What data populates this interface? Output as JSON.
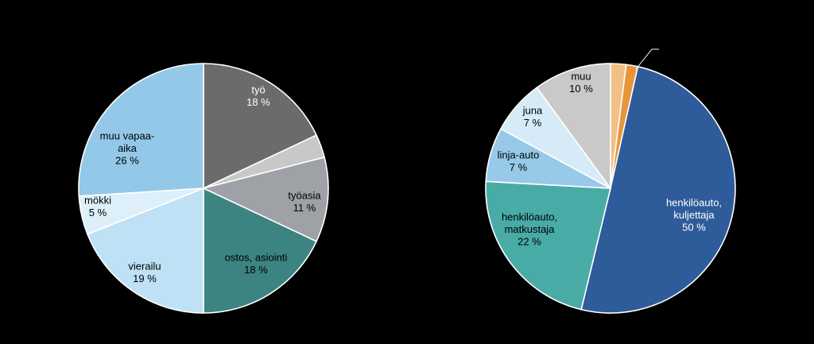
{
  "chart_data": [
    {
      "type": "pie",
      "title": "",
      "slices": [
        {
          "label": "työ",
          "value": 18,
          "value_text": "18 %",
          "color": "#6b6b6b",
          "text_color": "#ffffff"
        },
        {
          "label": "",
          "value": 3,
          "value_text": "",
          "color": "#c8c8c8",
          "text_color": "#000000"
        },
        {
          "label": "työasia",
          "value": 11,
          "value_text": "11 %",
          "color": "#9ea1a6",
          "text_color": "#000000"
        },
        {
          "label": "ostos, asiointi",
          "value": 18,
          "value_text": "18 %",
          "color": "#3b8481",
          "text_color": "#000000"
        },
        {
          "label": "vierailu",
          "value": 19,
          "value_text": "19 %",
          "color": "#bfe1f5",
          "text_color": "#000000"
        },
        {
          "label": "mökki",
          "value": 5,
          "value_text": "5 %",
          "color": "#ddf0fa",
          "text_color": "#000000"
        },
        {
          "label": "muu vapaa-aika",
          "value": 26,
          "value_text": "26 %",
          "color": "#93c8e8",
          "text_color": "#000000"
        }
      ]
    },
    {
      "type": "pie",
      "title": "",
      "slices": [
        {
          "label": "",
          "value": 2,
          "value_text": "",
          "color": "#f2bf86",
          "text_color": "#000000"
        },
        {
          "label": "",
          "value": 1.5,
          "value_text": "",
          "color": "#e8963c",
          "text_color": "#000000"
        },
        {
          "label": "henkilöauto, kuljettaja",
          "value": 50,
          "value_text": "50 %",
          "color": "#2e5b9a",
          "text_color": "#ffffff"
        },
        {
          "label": "henkilöauto, matkustaja",
          "value": 22,
          "value_text": "22 %",
          "color": "#49aba6",
          "text_color": "#000000"
        },
        {
          "label": "linja-auto",
          "value": 7,
          "value_text": "7 %",
          "color": "#97c9e8",
          "text_color": "#000000"
        },
        {
          "label": "juna",
          "value": 7,
          "value_text": "7 %",
          "color": "#d6ebf7",
          "text_color": "#000000"
        },
        {
          "label": "muu",
          "value": 10,
          "value_text": "10 %",
          "color": "#c9c9c9",
          "text_color": "#000000"
        }
      ]
    }
  ]
}
